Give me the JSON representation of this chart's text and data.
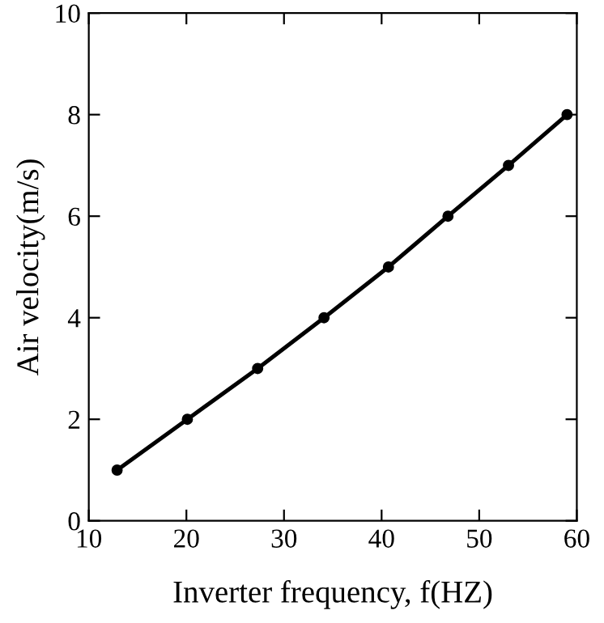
{
  "chart_data": {
    "type": "line",
    "xlabel": "Inverter frequency, f(HZ)",
    "ylabel": "Air velocity(m/s)",
    "x": [
      12.9,
      20.1,
      27.3,
      34.1,
      40.7,
      46.8,
      53.0,
      59.0
    ],
    "series": [
      {
        "color": "#000000",
        "values": [
          1,
          2,
          3,
          4,
          5,
          6,
          7,
          8
        ]
      }
    ],
    "xlim": [
      10,
      60
    ],
    "xticks": [
      10,
      20,
      30,
      40,
      50,
      60
    ],
    "ylim": [
      0,
      10
    ],
    "yticks": [
      0,
      2,
      4,
      6,
      8,
      10
    ],
    "marker": "circle",
    "line_style": "solid",
    "grid": false,
    "legend": false
  }
}
